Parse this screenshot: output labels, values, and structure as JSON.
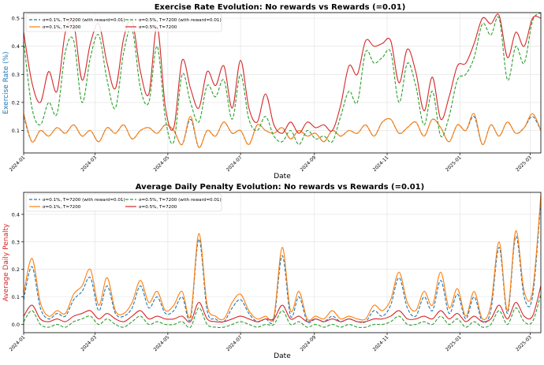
{
  "colors": {
    "s1": "#1f77b4",
    "s2": "#ff7f0e",
    "s3": "#2ca02c",
    "s4": "#d62728",
    "axis": "#000000",
    "grid": "#e0e0e0"
  },
  "chart_data": [
    {
      "type": "line",
      "title": "Exercise Rate Evolution: No rewards vs Rewards (=0.01)",
      "xlabel": "Date",
      "ylabel": "Exercise Rate (%)",
      "ylabel_color": "#1f77b4",
      "ylim": [
        0.02,
        0.52
      ],
      "yticks": [
        0.1,
        0.2,
        0.3,
        0.4,
        0.5
      ],
      "ytick_labels": [
        "0.1",
        "0.2",
        "0.3",
        "0.4",
        "0.5"
      ],
      "xlim": [
        "2024-01-01",
        "2025-03-10"
      ],
      "xticks": [
        "2024-01",
        "2024-03",
        "2024-05",
        "2024-07",
        "2024-09",
        "2024-11",
        "2025-01",
        "2025-03"
      ],
      "grid": true,
      "legend_loc": "upper-left",
      "legend_cols": 2,
      "x": [
        "2024-01-01",
        "2024-01-08",
        "2024-01-15",
        "2024-01-22",
        "2024-01-29",
        "2024-02-05",
        "2024-02-12",
        "2024-02-19",
        "2024-02-26",
        "2024-03-04",
        "2024-03-11",
        "2024-03-18",
        "2024-03-25",
        "2024-04-01",
        "2024-04-08",
        "2024-04-15",
        "2024-04-22",
        "2024-04-29",
        "2024-05-06",
        "2024-05-13",
        "2024-05-20",
        "2024-05-27",
        "2024-06-03",
        "2024-06-10",
        "2024-06-17",
        "2024-06-24",
        "2024-07-01",
        "2024-07-08",
        "2024-07-15",
        "2024-07-22",
        "2024-07-29",
        "2024-08-05",
        "2024-08-12",
        "2024-08-19",
        "2024-08-26",
        "2024-09-02",
        "2024-09-09",
        "2024-09-16",
        "2024-09-23",
        "2024-09-30",
        "2024-10-07",
        "2024-10-14",
        "2024-10-21",
        "2024-10-28",
        "2024-11-04",
        "2024-11-11",
        "2024-11-18",
        "2024-11-25",
        "2024-12-02",
        "2024-12-09",
        "2024-12-16",
        "2024-12-23",
        "2024-12-30",
        "2025-01-06",
        "2025-01-13",
        "2025-01-20",
        "2025-01-27",
        "2025-02-03",
        "2025-02-10",
        "2025-02-17",
        "2025-02-24",
        "2025-03-03",
        "2025-03-10"
      ],
      "series": [
        {
          "name": "σ=0.1%, T=7200 (with reward=0.01)",
          "color": "#1f77b4",
          "dash": "dashed",
          "values": [
            0.15,
            0.06,
            0.1,
            0.08,
            0.11,
            0.09,
            0.12,
            0.08,
            0.1,
            0.06,
            0.11,
            0.09,
            0.12,
            0.07,
            0.1,
            0.11,
            0.09,
            0.12,
            0.1,
            0.05,
            0.14,
            0.04,
            0.1,
            0.08,
            0.13,
            0.09,
            0.1,
            0.05,
            0.12,
            0.1,
            0.09,
            0.11,
            0.07,
            0.1,
            0.08,
            0.09,
            0.06,
            0.1,
            0.08,
            0.1,
            0.09,
            0.12,
            0.08,
            0.13,
            0.14,
            0.09,
            0.11,
            0.13,
            0.08,
            0.14,
            0.11,
            0.06,
            0.12,
            0.1,
            0.15,
            0.05,
            0.12,
            0.08,
            0.13,
            0.09,
            0.11,
            0.15,
            0.1
          ]
        },
        {
          "name": "σ=0.1%, T=7200",
          "color": "#ff7f0e",
          "dash": "solid",
          "values": [
            0.16,
            0.06,
            0.1,
            0.08,
            0.11,
            0.09,
            0.12,
            0.08,
            0.1,
            0.06,
            0.11,
            0.09,
            0.12,
            0.07,
            0.1,
            0.11,
            0.09,
            0.12,
            0.1,
            0.05,
            0.15,
            0.04,
            0.1,
            0.08,
            0.13,
            0.09,
            0.1,
            0.05,
            0.12,
            0.1,
            0.09,
            0.11,
            0.07,
            0.1,
            0.08,
            0.09,
            0.06,
            0.1,
            0.08,
            0.1,
            0.09,
            0.12,
            0.08,
            0.13,
            0.14,
            0.09,
            0.11,
            0.13,
            0.08,
            0.14,
            0.11,
            0.06,
            0.12,
            0.1,
            0.16,
            0.05,
            0.12,
            0.08,
            0.13,
            0.09,
            0.11,
            0.16,
            0.1
          ]
        },
        {
          "name": "σ=0.5%, T=7200 (with reward=0.01)",
          "color": "#2ca02c",
          "dash": "dashed",
          "values": [
            0.42,
            0.18,
            0.12,
            0.2,
            0.16,
            0.38,
            0.42,
            0.2,
            0.36,
            0.44,
            0.28,
            0.18,
            0.38,
            0.46,
            0.25,
            0.2,
            0.4,
            0.14,
            0.06,
            0.3,
            0.2,
            0.13,
            0.26,
            0.22,
            0.28,
            0.14,
            0.3,
            0.14,
            0.1,
            0.15,
            0.08,
            0.06,
            0.1,
            0.05,
            0.1,
            0.07,
            0.08,
            0.06,
            0.15,
            0.24,
            0.2,
            0.38,
            0.34,
            0.36,
            0.38,
            0.2,
            0.34,
            0.26,
            0.12,
            0.24,
            0.08,
            0.15,
            0.28,
            0.3,
            0.36,
            0.48,
            0.44,
            0.5,
            0.28,
            0.4,
            0.34,
            0.49,
            0.52
          ]
        },
        {
          "name": "σ=0.5%, T=7200",
          "color": "#d62728",
          "dash": "solid",
          "values": [
            0.45,
            0.27,
            0.2,
            0.31,
            0.24,
            0.45,
            0.48,
            0.28,
            0.41,
            0.48,
            0.34,
            0.25,
            0.43,
            0.49,
            0.31,
            0.23,
            0.47,
            0.18,
            0.11,
            0.35,
            0.25,
            0.18,
            0.31,
            0.26,
            0.33,
            0.18,
            0.35,
            0.18,
            0.13,
            0.23,
            0.12,
            0.09,
            0.13,
            0.09,
            0.13,
            0.11,
            0.12,
            0.1,
            0.19,
            0.33,
            0.3,
            0.42,
            0.4,
            0.41,
            0.42,
            0.27,
            0.39,
            0.31,
            0.17,
            0.29,
            0.14,
            0.22,
            0.33,
            0.34,
            0.41,
            0.5,
            0.48,
            0.51,
            0.36,
            0.45,
            0.4,
            0.5,
            0.5
          ]
        }
      ]
    },
    {
      "type": "line",
      "title": "Average Daily Penalty Evolution: No rewards vs Rewards (=0.01)",
      "xlabel": "Date",
      "ylabel": "Average Daily Penalty",
      "ylabel_color": "#d62728",
      "ylim": [
        -0.03,
        0.48
      ],
      "yticks": [
        0.0,
        0.1,
        0.2,
        0.3,
        0.4
      ],
      "ytick_labels": [
        "0.0",
        "0.1",
        "0.2",
        "0.3",
        "0.4"
      ],
      "xlim": [
        "2024-01-01",
        "2025-03-10"
      ],
      "xticks": [
        "2024-01",
        "2024-03",
        "2024-05",
        "2024-07",
        "2024-09",
        "2024-11",
        "2025-01",
        "2025-03"
      ],
      "grid": true,
      "legend_loc": "upper-left",
      "legend_cols": 2,
      "x": [
        "2024-01-01",
        "2024-01-08",
        "2024-01-15",
        "2024-01-22",
        "2024-01-29",
        "2024-02-05",
        "2024-02-12",
        "2024-02-19",
        "2024-02-26",
        "2024-03-04",
        "2024-03-11",
        "2024-03-18",
        "2024-03-25",
        "2024-04-01",
        "2024-04-08",
        "2024-04-15",
        "2024-04-22",
        "2024-04-29",
        "2024-05-06",
        "2024-05-13",
        "2024-05-20",
        "2024-05-27",
        "2024-06-03",
        "2024-06-10",
        "2024-06-17",
        "2024-06-24",
        "2024-07-01",
        "2024-07-08",
        "2024-07-15",
        "2024-07-22",
        "2024-07-29",
        "2024-08-05",
        "2024-08-12",
        "2024-08-19",
        "2024-08-26",
        "2024-09-02",
        "2024-09-09",
        "2024-09-16",
        "2024-09-23",
        "2024-09-30",
        "2024-10-07",
        "2024-10-14",
        "2024-10-21",
        "2024-10-28",
        "2024-11-04",
        "2024-11-11",
        "2024-11-18",
        "2024-11-25",
        "2024-12-02",
        "2024-12-09",
        "2024-12-16",
        "2024-12-23",
        "2024-12-30",
        "2025-01-06",
        "2025-01-13",
        "2025-01-20",
        "2025-01-27",
        "2025-02-03",
        "2025-02-10",
        "2025-02-17",
        "2025-02-24",
        "2025-03-03",
        "2025-03-10"
      ],
      "series": [
        {
          "name": "σ=0.1%, T=7200 (with reward=0.01)",
          "color": "#1f77b4",
          "dash": "dashed",
          "values": [
            0.09,
            0.21,
            0.06,
            0.02,
            0.04,
            0.03,
            0.09,
            0.12,
            0.17,
            0.05,
            0.14,
            0.04,
            0.03,
            0.06,
            0.14,
            0.06,
            0.1,
            0.04,
            0.05,
            0.1,
            0.02,
            0.31,
            0.05,
            0.02,
            0.01,
            0.06,
            0.09,
            0.04,
            0.01,
            0.02,
            0.02,
            0.25,
            0.03,
            0.1,
            0.01,
            0.02,
            0.01,
            0.03,
            0.01,
            0.02,
            0.01,
            0.01,
            0.05,
            0.03,
            0.07,
            0.17,
            0.06,
            0.03,
            0.1,
            0.05,
            0.16,
            0.04,
            0.11,
            0.02,
            0.1,
            0.01,
            0.05,
            0.28,
            0.04,
            0.32,
            0.1,
            0.1,
            0.45
          ]
        },
        {
          "name": "σ=0.1%, T=7200",
          "color": "#ff7f0e",
          "dash": "solid",
          "values": [
            0.11,
            0.24,
            0.08,
            0.03,
            0.05,
            0.04,
            0.11,
            0.14,
            0.2,
            0.07,
            0.17,
            0.05,
            0.04,
            0.08,
            0.16,
            0.08,
            0.12,
            0.05,
            0.07,
            0.12,
            0.03,
            0.33,
            0.07,
            0.03,
            0.02,
            0.08,
            0.11,
            0.05,
            0.02,
            0.03,
            0.03,
            0.28,
            0.05,
            0.12,
            0.02,
            0.03,
            0.02,
            0.05,
            0.02,
            0.03,
            0.02,
            0.02,
            0.07,
            0.05,
            0.09,
            0.19,
            0.08,
            0.05,
            0.12,
            0.07,
            0.19,
            0.06,
            0.13,
            0.03,
            0.12,
            0.02,
            0.07,
            0.3,
            0.05,
            0.34,
            0.12,
            0.12,
            0.47
          ]
        },
        {
          "name": "σ=0.5%, T=7200 (with reward=0.01)",
          "color": "#2ca02c",
          "dash": "dashed",
          "values": [
            0.01,
            0.05,
            0.0,
            -0.01,
            0.0,
            -0.01,
            0.01,
            0.02,
            0.03,
            0.0,
            0.02,
            0.0,
            -0.01,
            0.01,
            0.03,
            0.0,
            0.01,
            0.0,
            0.0,
            0.01,
            -0.01,
            0.06,
            0.0,
            -0.01,
            -0.01,
            0.0,
            0.01,
            0.0,
            -0.01,
            0.0,
            0.0,
            0.05,
            0.0,
            0.01,
            -0.01,
            0.0,
            -0.01,
            0.0,
            -0.01,
            0.0,
            -0.01,
            -0.01,
            0.0,
            0.0,
            0.01,
            0.03,
            0.0,
            0.0,
            0.01,
            0.0,
            0.03,
            0.0,
            0.02,
            -0.01,
            0.01,
            -0.01,
            0.0,
            0.05,
            0.0,
            0.06,
            0.01,
            0.01,
            0.11
          ]
        },
        {
          "name": "σ=0.5%, T=7200",
          "color": "#d62728",
          "dash": "solid",
          "values": [
            0.03,
            0.07,
            0.02,
            0.01,
            0.02,
            0.01,
            0.03,
            0.04,
            0.05,
            0.02,
            0.04,
            0.02,
            0.01,
            0.03,
            0.05,
            0.02,
            0.03,
            0.02,
            0.02,
            0.03,
            0.01,
            0.08,
            0.02,
            0.01,
            0.01,
            0.02,
            0.03,
            0.02,
            0.01,
            0.02,
            0.02,
            0.07,
            0.02,
            0.03,
            0.01,
            0.02,
            0.01,
            0.02,
            0.01,
            0.02,
            0.01,
            0.01,
            0.02,
            0.02,
            0.03,
            0.05,
            0.02,
            0.02,
            0.03,
            0.02,
            0.05,
            0.02,
            0.04,
            0.01,
            0.03,
            0.01,
            0.02,
            0.07,
            0.02,
            0.08,
            0.03,
            0.03,
            0.14
          ]
        }
      ]
    }
  ]
}
